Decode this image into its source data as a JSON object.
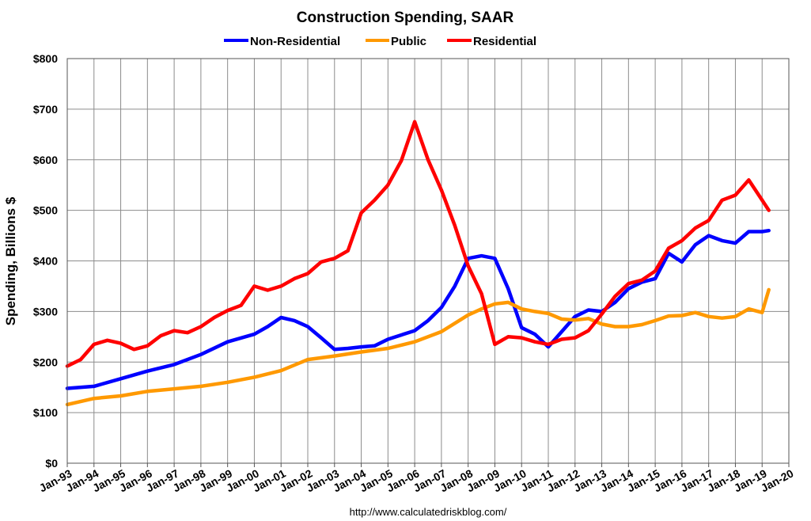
{
  "chart_data": {
    "type": "line",
    "title": "Construction Spending, SAAR",
    "ylabel": "Spending, Billions $",
    "xlabel": "",
    "ylim": [
      0,
      800
    ],
    "y_ticks": [
      "$0",
      "$100",
      "$200",
      "$300",
      "$400",
      "$500",
      "$600",
      "$700",
      "$800"
    ],
    "x_range": [
      "1993-01",
      "2020-01"
    ],
    "x_ticks": [
      "Jan-93",
      "Jan-94",
      "Jan-95",
      "Jan-96",
      "Jan-97",
      "Jan-98",
      "Jan-99",
      "Jan-00",
      "Jan-01",
      "Jan-02",
      "Jan-03",
      "Jan-04",
      "Jan-05",
      "Jan-06",
      "Jan-07",
      "Jan-08",
      "Jan-09",
      "Jan-10",
      "Jan-11",
      "Jan-12",
      "Jan-13",
      "Jan-14",
      "Jan-15",
      "Jan-16",
      "Jan-17",
      "Jan-18",
      "Jan-19",
      "Jan-20"
    ],
    "grid": true,
    "legend_position": "top-center",
    "source": "http://www.calculatedriskblog.com/",
    "series": [
      {
        "name": "Non-Residential",
        "color": "#0000ff",
        "points": [
          [
            "1993-01",
            148
          ],
          [
            "1994-01",
            152
          ],
          [
            "1995-01",
            167
          ],
          [
            "1996-01",
            182
          ],
          [
            "1997-01",
            195
          ],
          [
            "1998-01",
            215
          ],
          [
            "1999-01",
            240
          ],
          [
            "2000-01",
            255
          ],
          [
            "2000-07",
            270
          ],
          [
            "2001-01",
            288
          ],
          [
            "2001-07",
            282
          ],
          [
            "2002-01",
            270
          ],
          [
            "2002-07",
            248
          ],
          [
            "2003-01",
            225
          ],
          [
            "2003-07",
            227
          ],
          [
            "2004-01",
            230
          ],
          [
            "2004-07",
            232
          ],
          [
            "2005-01",
            245
          ],
          [
            "2006-01",
            262
          ],
          [
            "2006-07",
            282
          ],
          [
            "2007-01",
            308
          ],
          [
            "2007-07",
            350
          ],
          [
            "2008-01",
            405
          ],
          [
            "2008-07",
            410
          ],
          [
            "2009-01",
            405
          ],
          [
            "2009-07",
            345
          ],
          [
            "2010-01",
            268
          ],
          [
            "2010-07",
            255
          ],
          [
            "2011-01",
            230
          ],
          [
            "2011-07",
            260
          ],
          [
            "2012-01",
            290
          ],
          [
            "2012-07",
            303
          ],
          [
            "2013-01",
            300
          ],
          [
            "2013-07",
            318
          ],
          [
            "2014-01",
            345
          ],
          [
            "2014-07",
            358
          ],
          [
            "2015-01",
            365
          ],
          [
            "2015-07",
            415
          ],
          [
            "2016-01",
            398
          ],
          [
            "2016-07",
            432
          ],
          [
            "2017-01",
            450
          ],
          [
            "2017-07",
            440
          ],
          [
            "2018-01",
            435
          ],
          [
            "2018-07",
            458
          ],
          [
            "2019-01",
            458
          ],
          [
            "2019-04",
            460
          ]
        ]
      },
      {
        "name": "Public",
        "color": "#ff9900",
        "points": [
          [
            "1993-01",
            116
          ],
          [
            "1994-01",
            128
          ],
          [
            "1995-01",
            133
          ],
          [
            "1996-01",
            142
          ],
          [
            "1997-01",
            147
          ],
          [
            "1998-01",
            152
          ],
          [
            "1999-01",
            160
          ],
          [
            "2000-01",
            170
          ],
          [
            "2001-01",
            183
          ],
          [
            "2002-01",
            205
          ],
          [
            "2003-01",
            212
          ],
          [
            "2004-01",
            220
          ],
          [
            "2005-01",
            227
          ],
          [
            "2006-01",
            240
          ],
          [
            "2007-01",
            260
          ],
          [
            "2008-01",
            293
          ],
          [
            "2008-07",
            305
          ],
          [
            "2009-01",
            315
          ],
          [
            "2009-07",
            318
          ],
          [
            "2010-01",
            305
          ],
          [
            "2010-07",
            300
          ],
          [
            "2011-01",
            296
          ],
          [
            "2011-07",
            285
          ],
          [
            "2012-01",
            283
          ],
          [
            "2012-07",
            286
          ],
          [
            "2013-01",
            275
          ],
          [
            "2013-07",
            270
          ],
          [
            "2014-01",
            270
          ],
          [
            "2014-07",
            274
          ],
          [
            "2015-01",
            282
          ],
          [
            "2015-07",
            291
          ],
          [
            "2016-01",
            292
          ],
          [
            "2016-07",
            298
          ],
          [
            "2017-01",
            290
          ],
          [
            "2017-07",
            287
          ],
          [
            "2018-01",
            290
          ],
          [
            "2018-07",
            305
          ],
          [
            "2019-01",
            298
          ],
          [
            "2019-04",
            343
          ]
        ]
      },
      {
        "name": "Residential",
        "color": "#ff0000",
        "points": [
          [
            "1993-01",
            192
          ],
          [
            "1993-07",
            205
          ],
          [
            "1994-01",
            235
          ],
          [
            "1994-07",
            243
          ],
          [
            "1995-01",
            237
          ],
          [
            "1995-07",
            225
          ],
          [
            "1996-01",
            232
          ],
          [
            "1996-07",
            252
          ],
          [
            "1997-01",
            262
          ],
          [
            "1997-07",
            258
          ],
          [
            "1998-01",
            270
          ],
          [
            "1998-07",
            288
          ],
          [
            "1999-01",
            302
          ],
          [
            "1999-07",
            312
          ],
          [
            "2000-01",
            350
          ],
          [
            "2000-07",
            342
          ],
          [
            "2001-01",
            350
          ],
          [
            "2001-07",
            365
          ],
          [
            "2002-01",
            375
          ],
          [
            "2002-07",
            398
          ],
          [
            "2003-01",
            405
          ],
          [
            "2003-07",
            420
          ],
          [
            "2004-01",
            495
          ],
          [
            "2004-07",
            520
          ],
          [
            "2005-01",
            550
          ],
          [
            "2005-07",
            598
          ],
          [
            "2006-01",
            675
          ],
          [
            "2006-07",
            600
          ],
          [
            "2007-01",
            540
          ],
          [
            "2007-07",
            470
          ],
          [
            "2008-01",
            390
          ],
          [
            "2008-07",
            335
          ],
          [
            "2009-01",
            235
          ],
          [
            "2009-07",
            250
          ],
          [
            "2010-01",
            248
          ],
          [
            "2010-07",
            240
          ],
          [
            "2011-01",
            235
          ],
          [
            "2011-07",
            245
          ],
          [
            "2012-01",
            248
          ],
          [
            "2012-07",
            262
          ],
          [
            "2013-01",
            295
          ],
          [
            "2013-07",
            330
          ],
          [
            "2014-01",
            355
          ],
          [
            "2014-07",
            362
          ],
          [
            "2015-01",
            380
          ],
          [
            "2015-07",
            425
          ],
          [
            "2016-01",
            440
          ],
          [
            "2016-07",
            465
          ],
          [
            "2017-01",
            480
          ],
          [
            "2017-07",
            520
          ],
          [
            "2018-01",
            530
          ],
          [
            "2018-07",
            560
          ],
          [
            "2019-01",
            520
          ],
          [
            "2019-04",
            500
          ]
        ]
      }
    ]
  }
}
